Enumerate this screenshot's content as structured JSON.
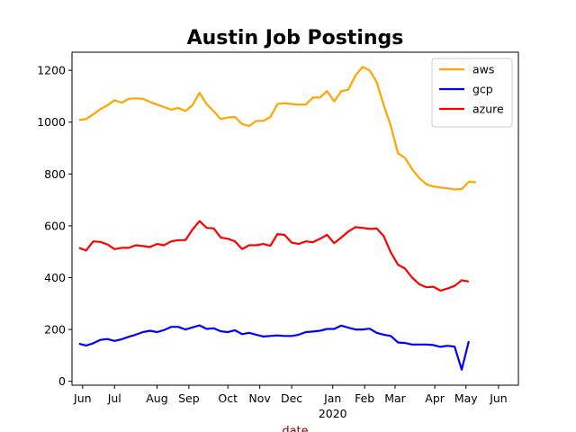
{
  "chart_data": {
    "type": "line",
    "title": "Austin Job Postings",
    "xlabel": "date",
    "ylabel": "",
    "ylim": [
      -15,
      1270
    ],
    "xlim": [
      -1,
      62
    ],
    "yticks": [
      0,
      200,
      400,
      600,
      800,
      1000,
      1200
    ],
    "xticks": [
      {
        "label": "Jun",
        "x": 0.5,
        "sub": ""
      },
      {
        "label": "Jul",
        "x": 5,
        "sub": ""
      },
      {
        "label": "Aug",
        "x": 11,
        "sub": ""
      },
      {
        "label": "Sep",
        "x": 15.5,
        "sub": ""
      },
      {
        "label": "Oct",
        "x": 21,
        "sub": ""
      },
      {
        "label": "Nov",
        "x": 25.5,
        "sub": ""
      },
      {
        "label": "Dec",
        "x": 30,
        "sub": ""
      },
      {
        "label": "Jan",
        "x": 35.8,
        "sub": "2020"
      },
      {
        "label": "Feb",
        "x": 40.3,
        "sub": ""
      },
      {
        "label": "Mar",
        "x": 44.6,
        "sub": ""
      },
      {
        "label": "Apr",
        "x": 50.2,
        "sub": ""
      },
      {
        "label": "May",
        "x": 54.6,
        "sub": ""
      },
      {
        "label": "Jun",
        "x": 59.2,
        "sub": ""
      }
    ],
    "legend": {
      "placement": "top-right"
    },
    "grid": false,
    "series": [
      {
        "name": "aws",
        "color": "#ffa500",
        "values": [
          1008,
          1012,
          1030,
          1050,
          1065,
          1085,
          1075,
          1090,
          1092,
          1090,
          1078,
          1068,
          1058,
          1048,
          1055,
          1043,
          1065,
          1113,
          1070,
          1042,
          1012,
          1018,
          1020,
          993,
          985,
          1005,
          1005,
          1020,
          1070,
          1073,
          1070,
          1068,
          1068,
          1095,
          1095,
          1120,
          1080,
          1120,
          1125,
          1180,
          1213,
          1200,
          1155,
          1065,
          985,
          880,
          862,
          818,
          785,
          760,
          752,
          748,
          745,
          740,
          742,
          770,
          768
        ]
      },
      {
        "name": "gcp",
        "color": "#0000ff",
        "values": [
          145,
          138,
          147,
          160,
          163,
          156,
          162,
          172,
          180,
          190,
          195,
          190,
          198,
          210,
          210,
          200,
          208,
          216,
          202,
          205,
          193,
          190,
          197,
          182,
          187,
          180,
          173,
          175,
          177,
          175,
          175,
          180,
          190,
          192,
          195,
          202,
          202,
          215,
          207,
          200,
          200,
          203,
          187,
          180,
          175,
          150,
          148,
          142,
          142,
          142,
          140,
          133,
          137,
          134,
          45,
          155
        ]
      },
      {
        "name": "azure",
        "color": "#ff0000",
        "values": [
          515,
          505,
          540,
          538,
          528,
          510,
          515,
          515,
          525,
          522,
          518,
          530,
          525,
          540,
          545,
          545,
          585,
          618,
          592,
          590,
          555,
          550,
          540,
          510,
          525,
          525,
          530,
          523,
          568,
          565,
          535,
          530,
          540,
          537,
          550,
          565,
          533,
          555,
          578,
          595,
          592,
          588,
          590,
          560,
          497,
          450,
          435,
          400,
          375,
          363,
          365,
          350,
          358,
          368,
          390,
          385
        ]
      }
    ]
  }
}
